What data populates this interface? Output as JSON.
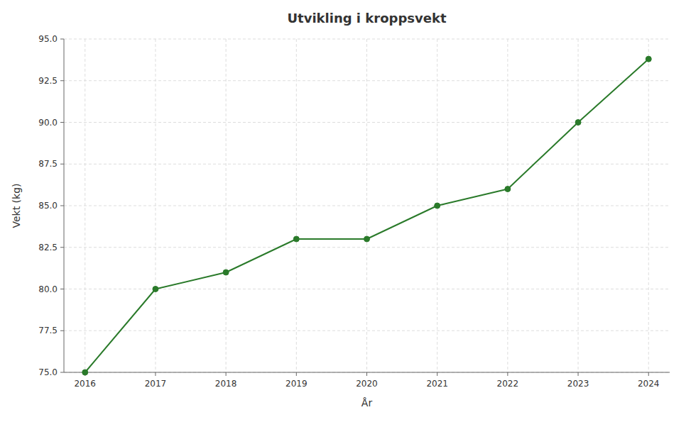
{
  "chart_data": {
    "type": "line",
    "title": "Utvikling i kroppsvekt",
    "x_label": "År",
    "y_label": "Vekt (kg)",
    "x": [
      2016,
      2017,
      2018,
      2019,
      2020,
      2021,
      2022,
      2023,
      2024
    ],
    "values": [
      75.0,
      80.0,
      81.0,
      83.0,
      83.0,
      85.0,
      86.0,
      90.0,
      93.8
    ],
    "color": "#2a7a2a",
    "marker": "circle",
    "line_style": "solid",
    "xlim": [
      2015.7,
      2024.3
    ],
    "xticks": [
      2016,
      2017,
      2018,
      2019,
      2020,
      2021,
      2022,
      2023,
      2024
    ],
    "ylim": [
      75.0,
      95.0
    ],
    "yticks": [
      {
        "value": 75,
        "label": "75.0"
      },
      77.5,
      {
        "value": 80,
        "label": "80.0"
      },
      82.5,
      {
        "value": 85,
        "label": "85.0"
      },
      87.5,
      {
        "value": 90,
        "label": "90.0"
      },
      92.5,
      {
        "value": 95,
        "label": "95.0"
      }
    ],
    "grid": true
  }
}
